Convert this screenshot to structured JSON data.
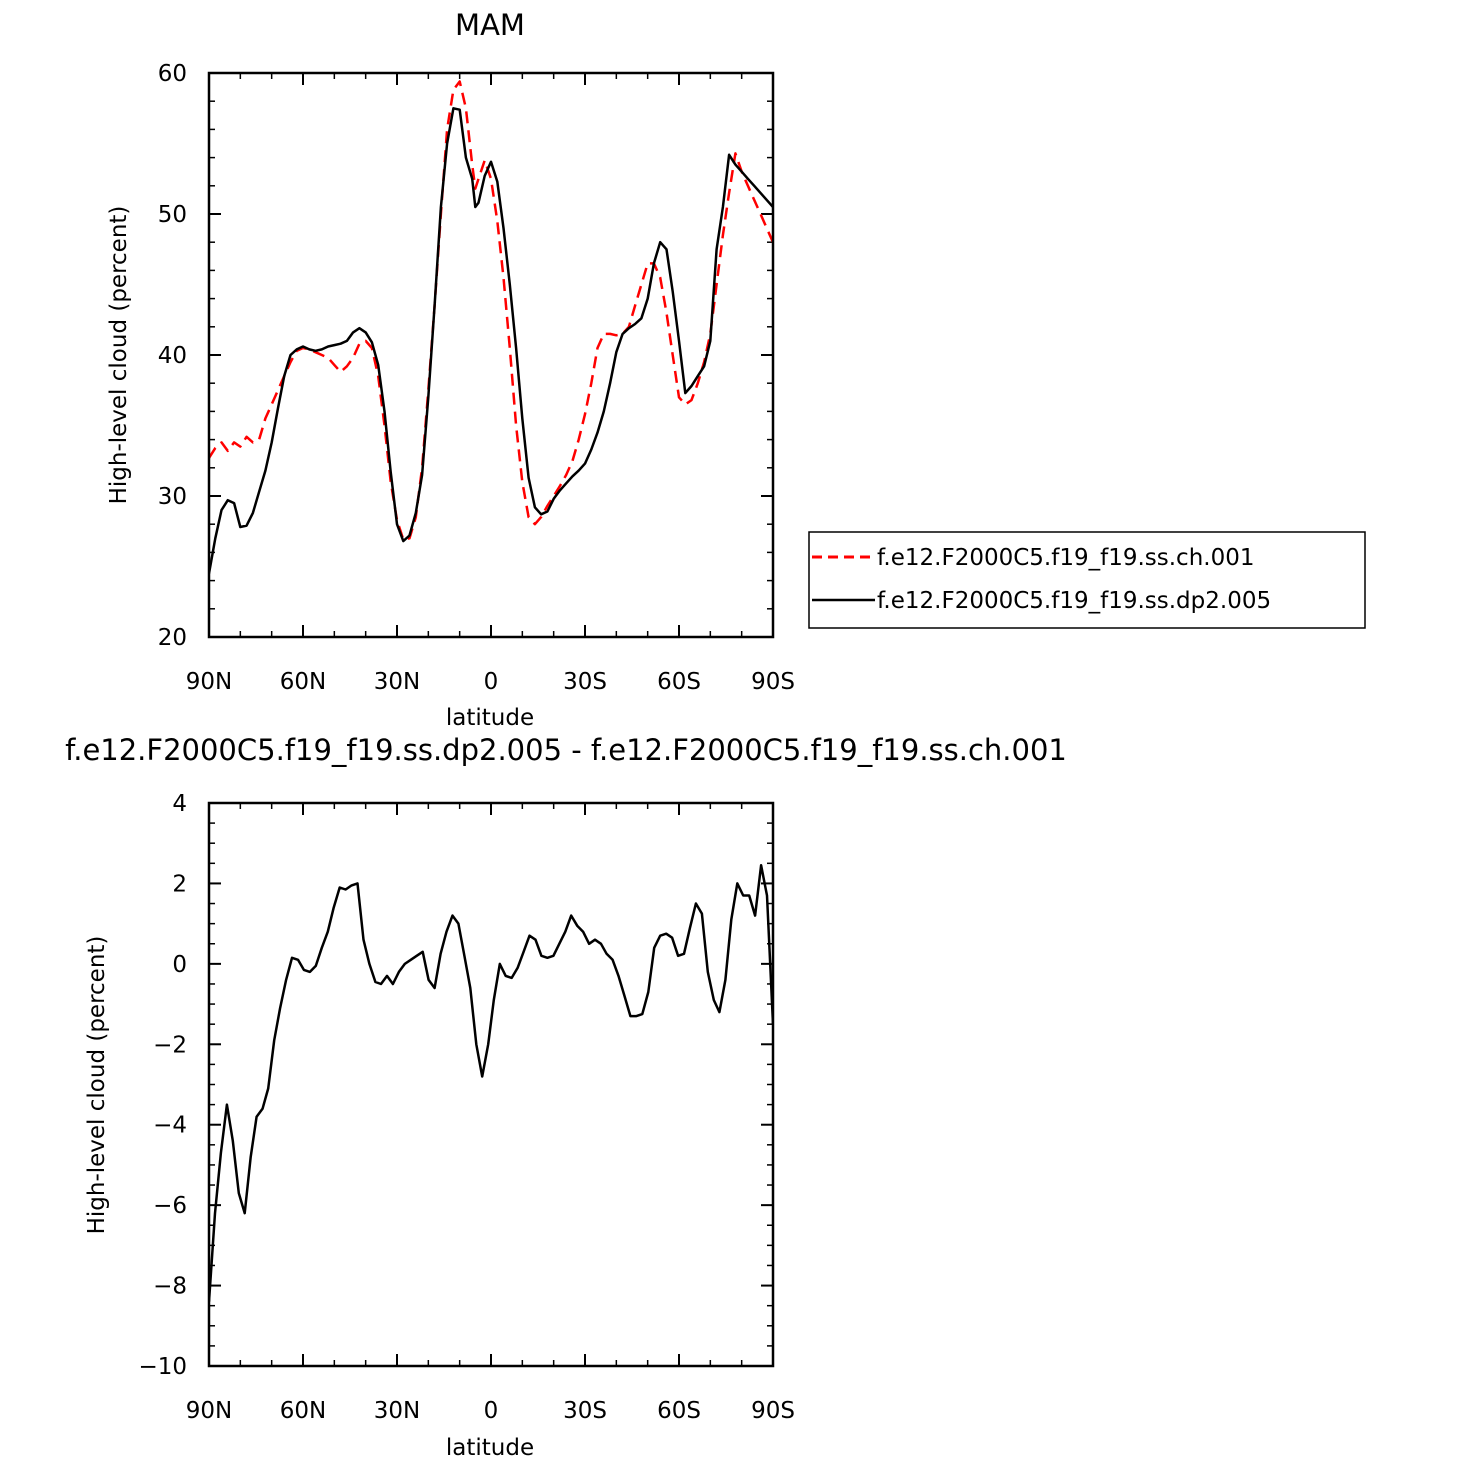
{
  "chart_data": [
    {
      "type": "line",
      "title": "MAM",
      "xlabel": "latitude",
      "ylabel": "High-level cloud (percent)",
      "xlim": [
        90,
        -90
      ],
      "ylim": [
        20,
        60
      ],
      "xticks": [
        90,
        60,
        30,
        0,
        -30,
        -60,
        -90
      ],
      "xtick_labels": [
        "90N",
        "60N",
        "30N",
        "0",
        "30S",
        "60S",
        "90S"
      ],
      "yticks": [
        20,
        30,
        40,
        50,
        60
      ],
      "ytick_labels": [
        "20",
        "30",
        "40",
        "50",
        "60"
      ],
      "legend_position": "right",
      "series": [
        {
          "name": "f.e12.F2000C5.f19_f19.ss.ch.001",
          "color": "#ff0000",
          "dash": "dashed",
          "x": [
            90,
            88,
            86,
            84,
            82,
            80,
            78,
            76,
            74,
            72,
            70,
            68,
            66,
            64,
            62,
            60,
            58,
            56,
            54,
            52,
            50,
            48,
            46,
            44,
            42,
            40,
            38,
            36,
            34,
            32,
            30,
            28,
            26,
            24,
            22,
            20,
            18,
            16,
            14,
            12,
            10,
            8,
            6,
            5,
            4,
            2,
            0,
            -2,
            -4,
            -6,
            -8,
            -10,
            -12,
            -14,
            -16,
            -18,
            -20,
            -22,
            -24,
            -26,
            -28,
            -30,
            -32,
            -34,
            -36,
            -38,
            -40,
            -42,
            -44,
            -46,
            -48,
            -50,
            -52,
            -54,
            -56,
            -58,
            -60,
            -62,
            -64,
            -66,
            -68,
            -70,
            -72,
            -74,
            -76,
            -78,
            -80,
            -82,
            -84,
            -86,
            -88,
            -90
          ],
          "y": [
            32.7,
            33.4,
            33.8,
            33.2,
            33.8,
            33.5,
            34.2,
            33.8,
            34.0,
            35.5,
            36.5,
            37.5,
            38.5,
            39.5,
            40.3,
            40.5,
            40.4,
            40.2,
            40.0,
            39.8,
            39.3,
            38.8,
            39.2,
            39.8,
            40.8,
            41.0,
            40.5,
            38.5,
            35.0,
            31.0,
            28.3,
            26.9,
            27.0,
            28.5,
            32.0,
            37.5,
            43.5,
            50.0,
            56.0,
            58.8,
            59.4,
            57.5,
            53.5,
            51.8,
            52.5,
            53.8,
            52.5,
            49.5,
            45.5,
            40.5,
            35.0,
            31.0,
            28.5,
            28.0,
            28.5,
            29.3,
            30.0,
            30.7,
            31.5,
            32.5,
            34.0,
            35.8,
            38.0,
            40.5,
            41.5,
            41.5,
            41.4,
            41.5,
            42.0,
            43.5,
            45.0,
            46.5,
            46.5,
            45.5,
            43.0,
            40.0,
            37.0,
            36.5,
            36.8,
            38.0,
            39.5,
            41.5,
            45.0,
            48.5,
            51.5,
            54.3,
            53.0,
            52.0,
            51.0,
            50.0,
            49.0,
            48.0
          ],
          "count_note": ""
        },
        {
          "name": "f.e12.F2000C5.f19_f19.ss.dp2.005",
          "color": "#000000",
          "dash": "solid",
          "x": [
            90,
            88,
            86,
            84,
            82,
            80,
            78,
            76,
            74,
            72,
            70,
            68,
            66,
            64,
            62,
            60,
            58,
            56,
            54,
            52,
            50,
            48,
            46,
            44,
            42,
            40,
            38,
            36,
            34,
            32,
            30,
            28,
            26,
            24,
            22,
            20,
            18,
            16,
            14,
            12,
            10,
            8,
            6,
            5,
            4,
            2,
            0,
            -2,
            -4,
            -6,
            -8,
            -10,
            -12,
            -14,
            -16,
            -18,
            -20,
            -22,
            -24,
            -26,
            -28,
            -30,
            -32,
            -34,
            -36,
            -38,
            -40,
            -42,
            -44,
            -46,
            -48,
            -50,
            -52,
            -54,
            -56,
            -58,
            -60,
            -62,
            -64,
            -66,
            -68,
            -70,
            -72,
            -74,
            -76,
            -78,
            -80,
            -82,
            -84,
            -86,
            -88,
            -90
          ],
          "y": [
            24.5,
            27.0,
            29.0,
            29.7,
            29.5,
            27.8,
            27.9,
            28.8,
            30.3,
            31.8,
            33.8,
            36.2,
            38.5,
            40.0,
            40.4,
            40.6,
            40.4,
            40.3,
            40.4,
            40.6,
            40.7,
            40.8,
            41.0,
            41.6,
            41.9,
            41.6,
            40.9,
            39.3,
            36.0,
            31.7,
            28.0,
            26.8,
            27.2,
            28.8,
            31.5,
            37.0,
            43.5,
            50.5,
            55.0,
            57.5,
            57.4,
            54.0,
            52.5,
            50.5,
            50.8,
            52.7,
            53.7,
            52.3,
            49.0,
            45.0,
            40.5,
            35.5,
            31.3,
            29.2,
            28.7,
            28.9,
            29.8,
            30.4,
            30.9,
            31.4,
            31.8,
            32.3,
            33.3,
            34.5,
            36.0,
            38.0,
            40.2,
            41.5,
            41.9,
            42.2,
            42.6,
            44.0,
            46.5,
            48.0,
            47.5,
            44.5,
            41.0,
            37.3,
            37.8,
            38.5,
            39.2,
            41.0,
            47.5,
            50.5,
            54.2,
            53.5,
            53.0,
            52.5,
            52.0,
            51.5,
            51.0,
            50.5
          ],
          "count_note": ""
        }
      ]
    },
    {
      "type": "line",
      "title": "f.e12.F2000C5.f19_f19.ss.dp2.005 - f.e12.F2000C5.f19_f19.ss.ch.001",
      "xlabel": "latitude",
      "ylabel": "High-level cloud (percent)",
      "xlim": [
        90,
        -90
      ],
      "ylim": [
        -10,
        4
      ],
      "xticks": [
        90,
        60,
        30,
        0,
        -30,
        -60,
        -90
      ],
      "xtick_labels": [
        "90N",
        "60N",
        "30N",
        "0",
        "30S",
        "60S",
        "90S"
      ],
      "yticks": [
        -10,
        -8,
        -6,
        -4,
        -2,
        0,
        2,
        4
      ],
      "ytick_labels": [
        "−10",
        "−8",
        "−6",
        "−4",
        "−2",
        "0",
        "2",
        "4"
      ],
      "series": [
        {
          "color": "#000000",
          "dash": "solid",
          "x": [
            90,
            88.1,
            86.2,
            84.3,
            82.4,
            80.5,
            78.6,
            76.7,
            74.8,
            72.9,
            71.1,
            69.2,
            67.3,
            65.4,
            63.5,
            61.6,
            59.7,
            57.8,
            55.9,
            54.0,
            52.1,
            50.2,
            48.3,
            46.4,
            44.5,
            42.6,
            40.7,
            38.8,
            36.9,
            35.1,
            33.2,
            31.3,
            29.4,
            27.5,
            25.6,
            23.7,
            21.8,
            19.9,
            18.0,
            16.1,
            14.2,
            12.3,
            10.4,
            8.5,
            6.6,
            4.7,
            2.8,
            0.9,
            -0.9,
            -2.8,
            -4.7,
            -6.6,
            -8.5,
            -10.4,
            -12.3,
            -14.2,
            -16.1,
            -18.0,
            -19.9,
            -21.8,
            -23.7,
            -25.6,
            -27.5,
            -29.4,
            -31.3,
            -33.2,
            -35.1,
            -36.9,
            -38.8,
            -40.7,
            -42.6,
            -44.5,
            -46.4,
            -48.3,
            -50.2,
            -52.1,
            -54.0,
            -55.9,
            -57.8,
            -59.7,
            -61.6,
            -63.5,
            -65.4,
            -67.3,
            -69.2,
            -71.1,
            -72.9,
            -74.8,
            -76.7,
            -78.6,
            -80.5,
            -82.4,
            -84.3,
            -86.2,
            -88.1,
            -90
          ],
          "y": [
            -8.4,
            -6.2,
            -4.7,
            -3.5,
            -4.4,
            -5.7,
            -6.2,
            -4.8,
            -3.8,
            -3.6,
            -3.1,
            -1.9,
            -1.1,
            -0.4,
            0.15,
            0.1,
            -0.15,
            -0.2,
            -0.05,
            0.4,
            0.8,
            1.4,
            1.9,
            1.85,
            1.95,
            2.0,
            0.6,
            0.0,
            -0.45,
            -0.5,
            -0.3,
            -0.5,
            -0.2,
            0.0,
            0.1,
            0.2,
            0.3,
            -0.4,
            -0.6,
            0.25,
            0.8,
            1.2,
            1.0,
            0.2,
            -0.6,
            -2.0,
            -2.8,
            -2.0,
            -0.9,
            0.0,
            -0.3,
            -0.35,
            -0.1,
            0.3,
            0.7,
            0.6,
            0.2,
            0.15,
            0.2,
            0.5,
            0.8,
            1.2,
            0.95,
            0.8,
            0.5,
            0.6,
            0.5,
            0.25,
            0.1,
            -0.3,
            -0.8,
            -1.3,
            -1.3,
            -1.25,
            -0.7,
            0.4,
            0.7,
            0.75,
            0.65,
            0.2,
            0.25,
            0.9,
            1.5,
            1.25,
            -0.2,
            -0.9,
            -1.2,
            -0.4,
            1.1,
            2.0,
            1.7,
            1.7,
            1.2,
            2.45,
            1.7,
            -1.5
          ]
        }
      ]
    }
  ],
  "count_note_top": ""
}
